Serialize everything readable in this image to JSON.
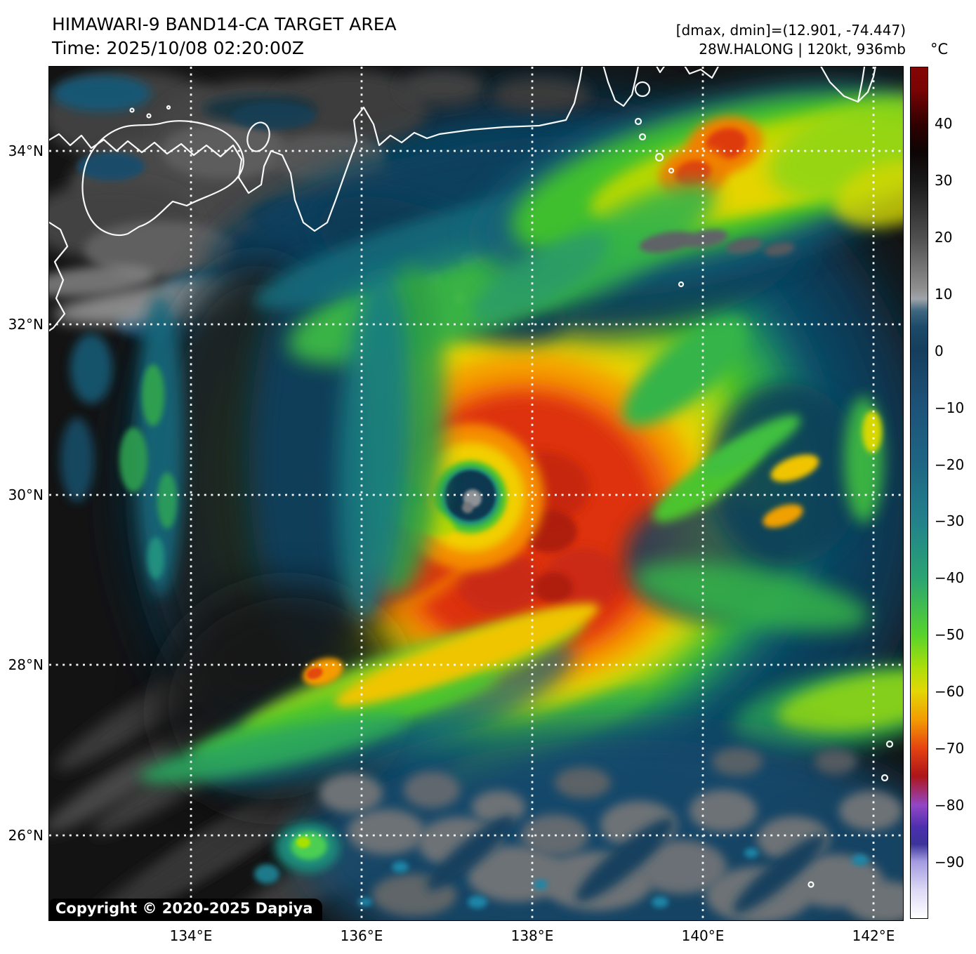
{
  "header": {
    "title": "HIMAWARI-9 BAND14-CA TARGET AREA",
    "time": "Time: 2025/10/08 02:20:00Z",
    "dmax_dmin": "[dmax, dmin]=(12.901, -74.447)",
    "storm": "28W.HALONG | 120kt, 936mb"
  },
  "map": {
    "copyright": "Copyright © 2020-2025 Dapiya",
    "lat_labels": [
      "34°N",
      "32°N",
      "30°N",
      "28°N",
      "26°N"
    ],
    "lon_labels": [
      "134°E",
      "136°E",
      "138°E",
      "140°E",
      "142°E"
    ]
  },
  "colorbar": {
    "unit": "°C",
    "range_c": [
      -100,
      50
    ],
    "ticks": [
      "40",
      "30",
      "20",
      "10",
      "0",
      "−10",
      "−20",
      "−30",
      "−40",
      "−50",
      "−60",
      "−70",
      "−80",
      "−90"
    ],
    "stops": [
      {
        "pct": 0,
        "color": "#840505"
      },
      {
        "pct": 2.5,
        "color": "#7b0404"
      },
      {
        "pct": 6.7,
        "color": "#300000"
      },
      {
        "pct": 10,
        "color": "#0d0404"
      },
      {
        "pct": 13.3,
        "color": "#181818"
      },
      {
        "pct": 20,
        "color": "#4e4e4e"
      },
      {
        "pct": 26,
        "color": "#8f8f8f"
      },
      {
        "pct": 27.2,
        "color": "#a0a4aa"
      },
      {
        "pct": 28.6,
        "color": "#3f677f"
      },
      {
        "pct": 30.5,
        "color": "#1c4a68"
      },
      {
        "pct": 33.3,
        "color": "#153e5d"
      },
      {
        "pct": 40,
        "color": "#1d5379"
      },
      {
        "pct": 46.7,
        "color": "#1e6683"
      },
      {
        "pct": 53.3,
        "color": "#22818b"
      },
      {
        "pct": 60,
        "color": "#2aa473"
      },
      {
        "pct": 66.7,
        "color": "#57d32c"
      },
      {
        "pct": 70.5,
        "color": "#aade0a"
      },
      {
        "pct": 73.3,
        "color": "#e3d705"
      },
      {
        "pct": 76.7,
        "color": "#f29b02"
      },
      {
        "pct": 80,
        "color": "#e54311"
      },
      {
        "pct": 83.3,
        "color": "#ad1519"
      },
      {
        "pct": 86.7,
        "color": "#9347c5"
      },
      {
        "pct": 89.3,
        "color": "#4c2fae"
      },
      {
        "pct": 91.3,
        "color": "#3b3399"
      },
      {
        "pct": 93.3,
        "color": "#a29ae0"
      },
      {
        "pct": 96.7,
        "color": "#ddd9f6"
      },
      {
        "pct": 100,
        "color": "#ffffff"
      }
    ]
  }
}
